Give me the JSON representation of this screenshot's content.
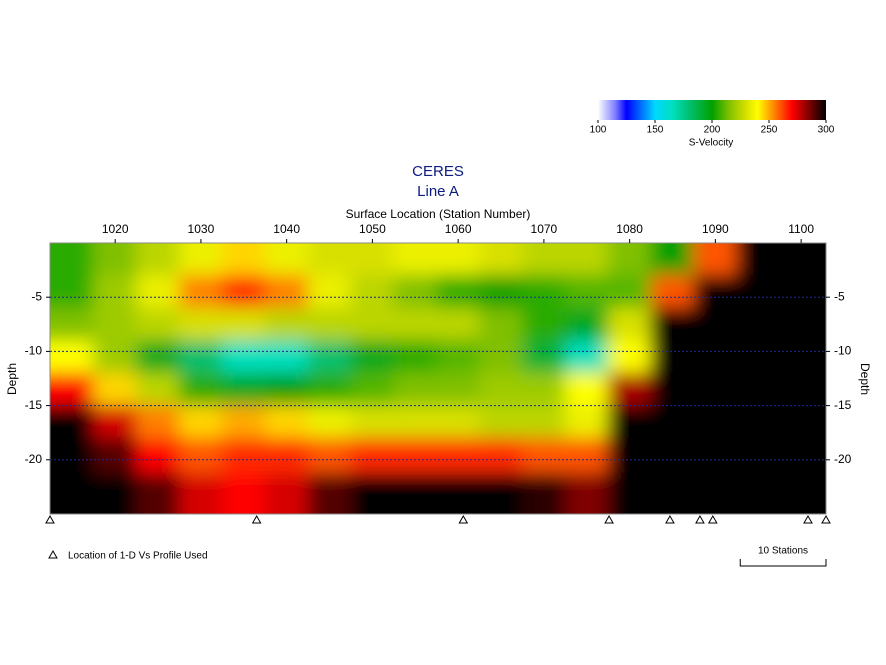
{
  "chart_data": {
    "type": "heatmap",
    "title": "CERES",
    "subtitle": "Line A",
    "x_label": "Surface Location (Station Number)",
    "y_label": "Depth",
    "xlim": [
      1012.4,
      1102.9
    ],
    "xticks": [
      1020,
      1030,
      1040,
      1050,
      1060,
      1070,
      1080,
      1090,
      1100
    ],
    "ylim": [
      -25,
      0
    ],
    "yticks": [
      -5,
      -10,
      -15,
      -20
    ],
    "grid": true,
    "x": [
      1015,
      1020,
      1025,
      1030,
      1035,
      1040,
      1045,
      1050,
      1055,
      1060,
      1065,
      1070,
      1075,
      1080,
      1085,
      1090,
      1095,
      1100
    ],
    "y": [
      -1.5,
      -4.5,
      -7.5,
      -10.5,
      -13.5,
      -16.5,
      -19.5,
      -23
    ],
    "z": [
      [
        205,
        215,
        225,
        235,
        245,
        235,
        230,
        230,
        235,
        235,
        230,
        225,
        225,
        215,
        200,
        260,
        300,
        300
      ],
      [
        205,
        220,
        235,
        255,
        265,
        255,
        235,
        225,
        215,
        205,
        200,
        205,
        210,
        210,
        260,
        300,
        300,
        300
      ],
      [
        215,
        220,
        225,
        230,
        230,
        225,
        225,
        225,
        225,
        225,
        215,
        205,
        195,
        230,
        300,
        300,
        300,
        300
      ],
      [
        240,
        220,
        195,
        180,
        165,
        165,
        180,
        195,
        205,
        210,
        215,
        190,
        165,
        240,
        300,
        300,
        300,
        300
      ],
      [
        270,
        245,
        225,
        205,
        195,
        200,
        205,
        210,
        215,
        215,
        220,
        220,
        240,
        280,
        300,
        300,
        300,
        300
      ],
      [
        300,
        275,
        255,
        245,
        250,
        245,
        235,
        230,
        230,
        230,
        225,
        225,
        235,
        300,
        300,
        300,
        300,
        300
      ],
      [
        300,
        290,
        270,
        260,
        265,
        265,
        260,
        265,
        265,
        265,
        265,
        260,
        260,
        300,
        300,
        300,
        300,
        300
      ],
      [
        300,
        300,
        290,
        275,
        270,
        275,
        290,
        300,
        300,
        300,
        300,
        295,
        285,
        300,
        300,
        300,
        300,
        300
      ]
    ],
    "colorbar_label": "S-Velocity",
    "colorbar_lim": [
      100,
      300
    ],
    "colorbar_ticks": [
      100,
      150,
      200,
      250,
      300
    ],
    "colorscale": [
      [
        100,
        "#ffffff"
      ],
      [
        115,
        "#8080ff"
      ],
      [
        125,
        "#0000ff"
      ],
      [
        150,
        "#00d8ff"
      ],
      [
        165,
        "#00e0c0"
      ],
      [
        180,
        "#00c070"
      ],
      [
        200,
        "#00a000"
      ],
      [
        215,
        "#80c000"
      ],
      [
        230,
        "#d8e000"
      ],
      [
        240,
        "#ffff00"
      ],
      [
        255,
        "#ff8000"
      ],
      [
        270,
        "#ff0000"
      ],
      [
        285,
        "#800000"
      ],
      [
        300,
        "#000000"
      ]
    ],
    "profile_locations": [
      1012.4,
      1036.5,
      1060.6,
      1077.6,
      1084.7,
      1088.2,
      1089.7,
      1100.8,
      1102.9
    ],
    "profile_legend": "Location of 1-D Vs Profile Used",
    "scale_bar": {
      "label": "10 Stations",
      "length": 10
    }
  }
}
